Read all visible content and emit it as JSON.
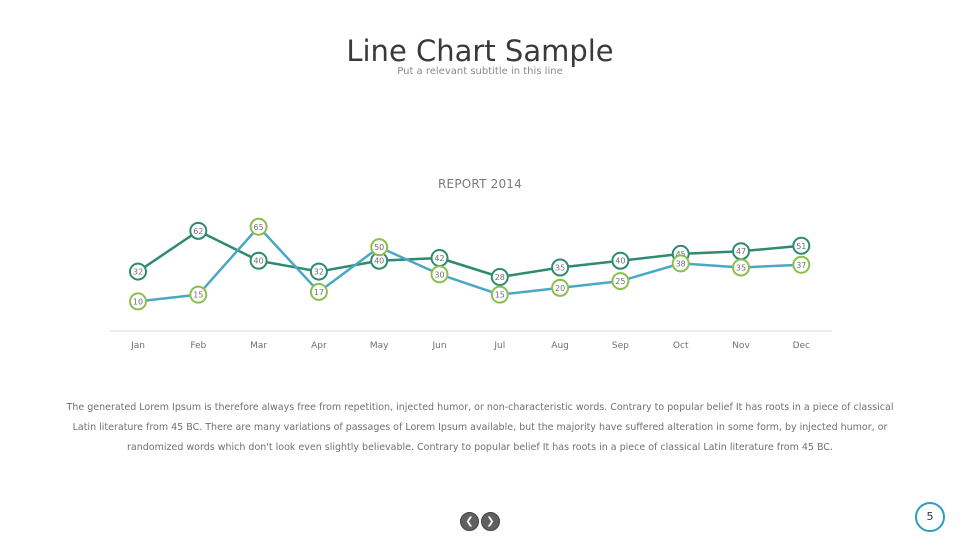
{
  "slide": {
    "title": "Line Chart Sample",
    "subtitle": "Put a relevant subtitle in this line",
    "body": "The generated Lorem Ipsum is therefore always free from repetition, injected humor, or non-characteristic words. Contrary to popular belief It has roots in a piece of classical Latin literature from 45 BC. There are many variations of passages of Lorem Ipsum available, but the majority have suffered alteration in some form, by injected humor, or randomized words which don't look even slightly believable. Contrary to popular belief It has roots in a piece of classical Latin literature from 45 BC.",
    "page_number": "5",
    "prev_icon": "chevron-left-icon",
    "next_icon": "chevron-right-icon"
  },
  "chart_data": {
    "type": "line",
    "title": "REPORT 2014",
    "categories": [
      "Jan",
      "Feb",
      "Mar",
      "Apr",
      "May",
      "Jun",
      "Jul",
      "Aug",
      "Sep",
      "Oct",
      "Nov",
      "Dec"
    ],
    "series": [
      {
        "values": [
          32,
          62,
          40,
          32,
          40,
          42,
          28,
          35,
          40,
          45,
          47,
          51
        ],
        "color": "#2e8b70",
        "marker_border": "#2e8b70"
      },
      {
        "values": [
          10,
          15,
          65,
          17,
          50,
          30,
          15,
          20,
          25,
          38,
          35,
          37
        ],
        "color": "#4aa8c4",
        "marker_border": "#8bbf4d"
      }
    ],
    "ylim": [
      0,
      70
    ],
    "grid": false,
    "legend": "none"
  }
}
